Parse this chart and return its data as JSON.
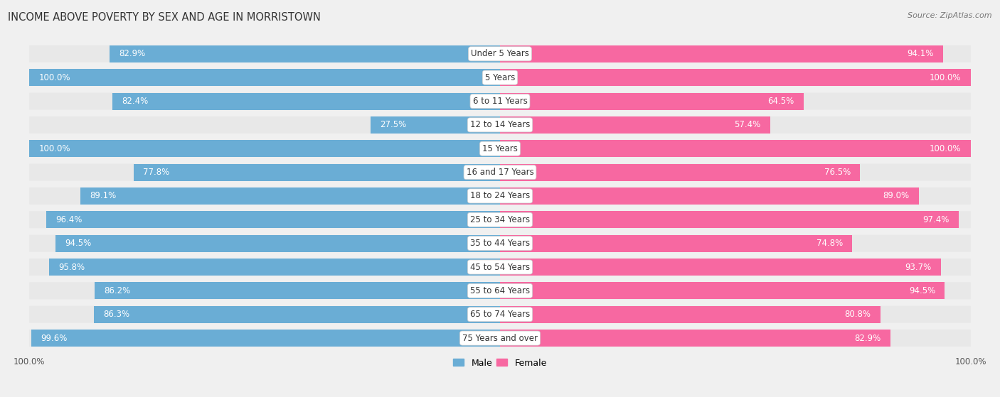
{
  "title": "INCOME ABOVE POVERTY BY SEX AND AGE IN MORRISTOWN",
  "source": "Source: ZipAtlas.com",
  "categories": [
    "Under 5 Years",
    "5 Years",
    "6 to 11 Years",
    "12 to 14 Years",
    "15 Years",
    "16 and 17 Years",
    "18 to 24 Years",
    "25 to 34 Years",
    "35 to 44 Years",
    "45 to 54 Years",
    "55 to 64 Years",
    "65 to 74 Years",
    "75 Years and over"
  ],
  "male_values": [
    82.9,
    100.0,
    82.4,
    27.5,
    100.0,
    77.8,
    89.1,
    96.4,
    94.5,
    95.8,
    86.2,
    86.3,
    99.6
  ],
  "female_values": [
    94.1,
    100.0,
    64.5,
    57.4,
    100.0,
    76.5,
    89.0,
    97.4,
    74.8,
    93.7,
    94.5,
    80.8,
    82.9
  ],
  "male_color": "#6aadd5",
  "female_color": "#f768a1",
  "male_color_light": "#c6d9ee",
  "female_color_light": "#fbbfd6",
  "background_color": "#f0f0f0",
  "row_bg_color": "#e8e8e8",
  "title_fontsize": 10.5,
  "label_fontsize": 8.5,
  "tick_fontsize": 8.5,
  "legend_fontsize": 9,
  "value_fontsize": 8.5
}
